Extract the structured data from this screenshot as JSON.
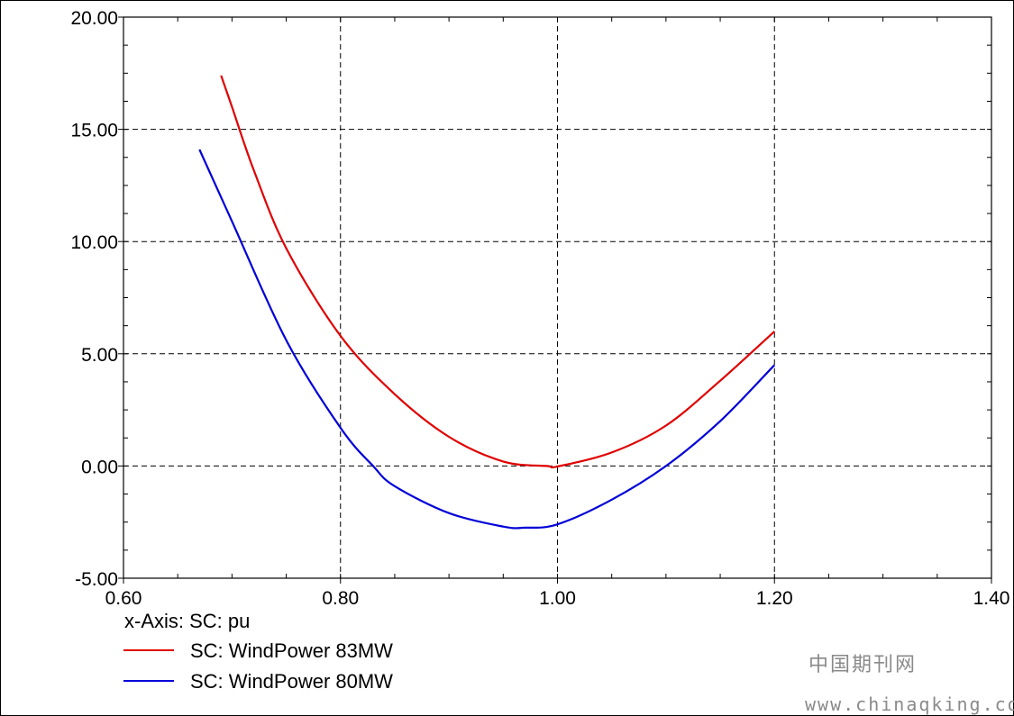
{
  "chart_data": {
    "type": "line",
    "title": "",
    "xlabel": "x-Axis: SC: pu",
    "ylabel": "",
    "xlim": [
      0.6,
      1.4
    ],
    "ylim": [
      -5,
      20
    ],
    "x_ticks": [
      "0.60",
      "0.80",
      "1.00",
      "1.20",
      "1.40"
    ],
    "y_ticks": [
      "20.00",
      "15.00",
      "10.00",
      "5.00",
      "0.00",
      "-5.00"
    ],
    "grid": true,
    "legend_position": "bottom-left",
    "series": [
      {
        "name": "SC: WindPower 83MW",
        "color": "#e00000",
        "x": [
          0.69,
          0.7,
          0.72,
          0.75,
          0.8,
          0.85,
          0.9,
          0.95,
          0.99,
          1.0,
          1.05,
          1.1,
          1.15,
          1.2
        ],
        "y": [
          17.4,
          16.0,
          13.2,
          9.7,
          5.8,
          3.2,
          1.3,
          0.2,
          0.0,
          -0.02,
          0.6,
          1.8,
          3.8,
          6.0
        ]
      },
      {
        "name": "SC: WindPower 80MW",
        "color": "#0000d8",
        "x": [
          0.67,
          0.7,
          0.75,
          0.8,
          0.83,
          0.85,
          0.9,
          0.95,
          0.97,
          1.0,
          1.05,
          1.1,
          1.15,
          1.2
        ],
        "y": [
          14.1,
          10.9,
          5.6,
          1.7,
          0.0,
          -0.9,
          -2.1,
          -2.7,
          -2.75,
          -2.6,
          -1.5,
          0.0,
          2.0,
          4.5
        ]
      }
    ]
  },
  "watermark": {
    "chinese": "中国期刊网",
    "url": "www.chinaqking.com"
  }
}
